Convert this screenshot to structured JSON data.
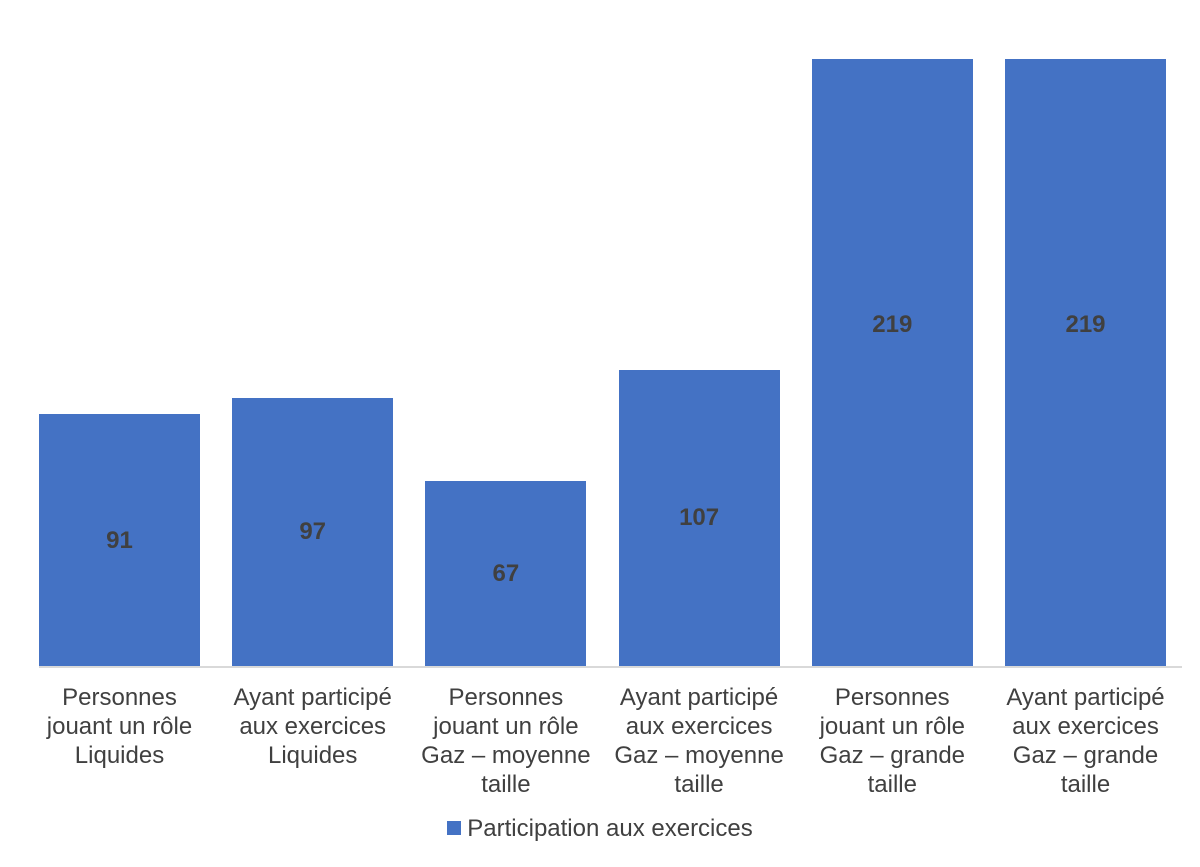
{
  "chart_data": {
    "type": "bar",
    "title": "",
    "xlabel": "",
    "ylabel": "",
    "ylim": [
      0,
      219
    ],
    "grid": false,
    "legend_position": "bottom",
    "categories": [
      "Personnes jouant un rôle Liquides",
      "Ayant participé aux exercices Liquides",
      "Personnes jouant un rôle Gaz – moyenne taille",
      "Ayant participé aux exercices Gaz – moyenne taille",
      "Personnes jouant un rôle Gaz – grande taille",
      "Ayant participé aux exercices Gaz – grande taille"
    ],
    "category_lines": [
      [
        "Personnes",
        "jouant un rôle",
        "Liquides"
      ],
      [
        "Ayant participé",
        "aux exercices",
        "Liquides"
      ],
      [
        "Personnes",
        "jouant un rôle",
        "Gaz – moyenne",
        "taille"
      ],
      [
        "Ayant participé",
        "aux exercices",
        "Gaz – moyenne",
        "taille"
      ],
      [
        "Personnes",
        "jouant un rôle",
        "Gaz – grande",
        "taille"
      ],
      [
        "Ayant participé",
        "aux exercices",
        "Gaz – grande",
        "taille"
      ]
    ],
    "series": [
      {
        "name": "Participation aux exercices",
        "color": "#4472C4",
        "values": [
          91,
          97,
          67,
          107,
          219,
          219
        ]
      }
    ],
    "value_labels": [
      "91",
      "97",
      "67",
      "107",
      "219",
      "219"
    ]
  },
  "legend": {
    "label": "Participation aux exercices",
    "color": "#4472C4"
  }
}
